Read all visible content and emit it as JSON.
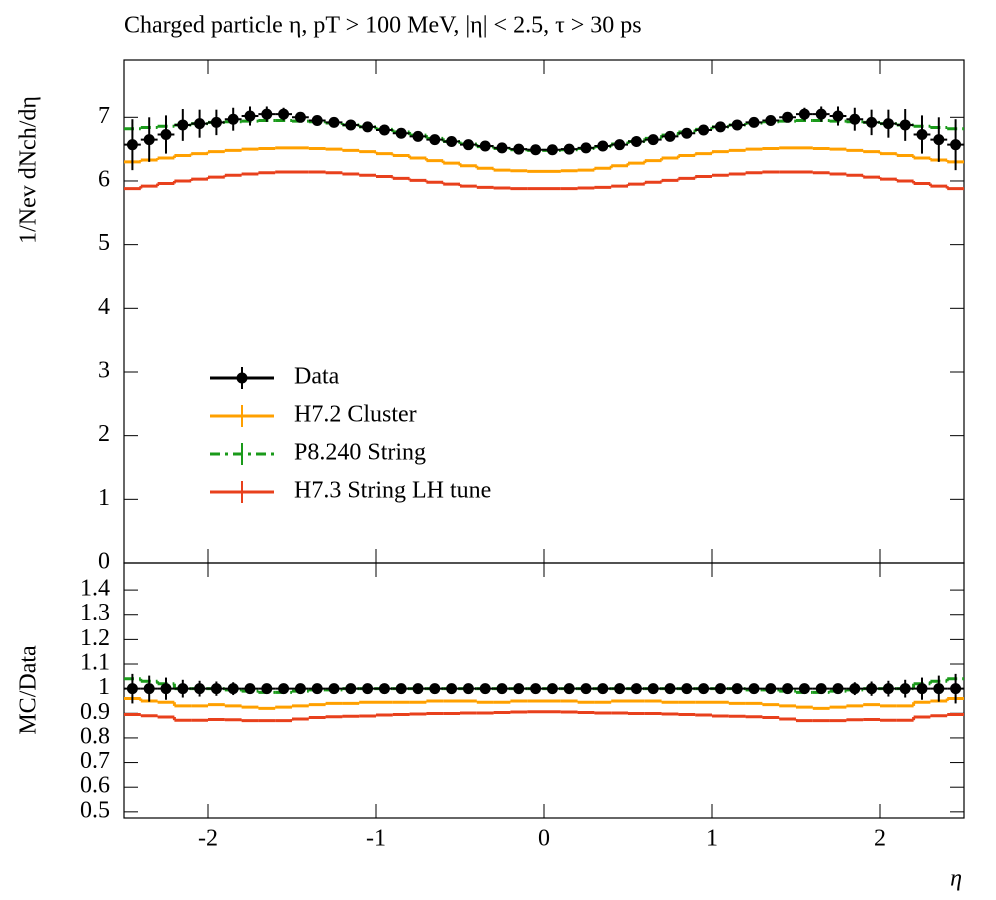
{
  "chart_data": [
    {
      "type": "histogram",
      "title": "Charged particle η, pT > 100 MeV, |η| < 2.5, τ > 30 ps",
      "ylabel": "1/Nev dNch/dη",
      "bins": [
        -2.5,
        -2.4,
        -2.3,
        -2.2,
        -2.1,
        -2.0,
        -1.9,
        -1.8,
        -1.7,
        -1.6,
        -1.5,
        -1.4,
        -1.3,
        -1.2,
        -1.1,
        -1.0,
        -0.9,
        -0.8,
        -0.7,
        -0.6,
        -0.5,
        -0.4,
        -0.3,
        -0.2,
        -0.1,
        0,
        0.1,
        0.2,
        0.3,
        0.4,
        0.5,
        0.6,
        0.7,
        0.8,
        0.9,
        1.0,
        1.1,
        1.2,
        1.3,
        1.4,
        1.5,
        1.6,
        1.7,
        1.8,
        1.9,
        2.0,
        2.1,
        2.2,
        2.3,
        2.4,
        2.5
      ],
      "xlim": [
        -2.5,
        2.5
      ],
      "xticks": [
        -2,
        -1,
        0,
        1,
        2
      ],
      "ylim": [
        0,
        7.9
      ],
      "yticks": [
        0,
        1,
        2,
        3,
        4,
        5,
        6,
        7
      ],
      "series": [
        {
          "name": "Data",
          "color": "#000000",
          "style": "points",
          "values": [
            6.57,
            6.65,
            6.73,
            6.88,
            6.9,
            6.92,
            6.97,
            7.02,
            7.05,
            7.05,
            7.0,
            6.95,
            6.92,
            6.88,
            6.85,
            6.8,
            6.75,
            6.7,
            6.65,
            6.62,
            6.57,
            6.55,
            6.52,
            6.5,
            6.49,
            6.49,
            6.5,
            6.52,
            6.55,
            6.57,
            6.62,
            6.65,
            6.7,
            6.75,
            6.8,
            6.85,
            6.88,
            6.92,
            6.95,
            7.0,
            7.05,
            7.05,
            7.02,
            6.97,
            6.92,
            6.9,
            6.88,
            6.73,
            6.65,
            6.57
          ],
          "errors": [
            0.4,
            0.35,
            0.3,
            0.25,
            0.22,
            0.2,
            0.18,
            0.15,
            0.12,
            0.1,
            0.08,
            0.07,
            0.06,
            0.06,
            0.05,
            0.05,
            0.05,
            0.05,
            0.05,
            0.05,
            0.05,
            0.05,
            0.05,
            0.05,
            0.05,
            0.05,
            0.05,
            0.05,
            0.05,
            0.05,
            0.05,
            0.05,
            0.05,
            0.05,
            0.05,
            0.05,
            0.06,
            0.06,
            0.07,
            0.08,
            0.1,
            0.12,
            0.15,
            0.18,
            0.2,
            0.22,
            0.25,
            0.3,
            0.35,
            0.4
          ]
        },
        {
          "name": "H7.2 Cluster",
          "color": "#ffa000",
          "style": "solid",
          "values": [
            6.3,
            6.33,
            6.36,
            6.4,
            6.43,
            6.46,
            6.48,
            6.5,
            6.51,
            6.52,
            6.52,
            6.51,
            6.5,
            6.48,
            6.46,
            6.43,
            6.4,
            6.36,
            6.32,
            6.28,
            6.24,
            6.2,
            6.17,
            6.16,
            6.15,
            6.15,
            6.16,
            6.17,
            6.2,
            6.24,
            6.28,
            6.32,
            6.36,
            6.4,
            6.43,
            6.46,
            6.48,
            6.5,
            6.51,
            6.52,
            6.52,
            6.51,
            6.5,
            6.48,
            6.46,
            6.43,
            6.4,
            6.36,
            6.33,
            6.3
          ]
        },
        {
          "name": "P8.240 String",
          "color": "#1a9a1a",
          "style": "dashdot",
          "values": [
            6.82,
            6.84,
            6.86,
            6.88,
            6.9,
            6.92,
            6.93,
            6.94,
            6.95,
            6.95,
            6.94,
            6.93,
            6.91,
            6.88,
            6.85,
            6.81,
            6.77,
            6.72,
            6.67,
            6.62,
            6.58,
            6.54,
            6.51,
            6.49,
            6.48,
            6.48,
            6.49,
            6.51,
            6.54,
            6.58,
            6.62,
            6.67,
            6.72,
            6.77,
            6.81,
            6.85,
            6.88,
            6.91,
            6.93,
            6.94,
            6.95,
            6.95,
            6.94,
            6.93,
            6.92,
            6.9,
            6.88,
            6.86,
            6.84,
            6.82
          ]
        },
        {
          "name": "H7.3 String LH tune",
          "color": "#e8401c",
          "style": "solid",
          "values": [
            5.88,
            5.92,
            5.96,
            6.0,
            6.03,
            6.06,
            6.09,
            6.11,
            6.13,
            6.14,
            6.14,
            6.14,
            6.13,
            6.11,
            6.09,
            6.07,
            6.04,
            6.01,
            5.98,
            5.95,
            5.92,
            5.9,
            5.89,
            5.88,
            5.88,
            5.88,
            5.88,
            5.89,
            5.9,
            5.92,
            5.95,
            5.98,
            6.01,
            6.04,
            6.07,
            6.09,
            6.11,
            6.13,
            6.14,
            6.14,
            6.14,
            6.13,
            6.11,
            6.09,
            6.06,
            6.03,
            6.0,
            5.96,
            5.92,
            5.88
          ]
        }
      ]
    },
    {
      "type": "histogram",
      "ylabel": "MC/Data",
      "xlabel": "η",
      "bins": [
        -2.5,
        -2.4,
        -2.3,
        -2.2,
        -2.1,
        -2.0,
        -1.9,
        -1.8,
        -1.7,
        -1.6,
        -1.5,
        -1.4,
        -1.3,
        -1.2,
        -1.1,
        -1.0,
        -0.9,
        -0.8,
        -0.7,
        -0.6,
        -0.5,
        -0.4,
        -0.3,
        -0.2,
        -0.1,
        0,
        0.1,
        0.2,
        0.3,
        0.4,
        0.5,
        0.6,
        0.7,
        0.8,
        0.9,
        1.0,
        1.1,
        1.2,
        1.3,
        1.4,
        1.5,
        1.6,
        1.7,
        1.8,
        1.9,
        2.0,
        2.1,
        2.2,
        2.3,
        2.4,
        2.5
      ],
      "xlim": [
        -2.5,
        2.5
      ],
      "xticks": [
        -2,
        -1,
        0,
        1,
        2
      ],
      "ylim": [
        0.475,
        1.51
      ],
      "yticks": [
        0.5,
        0.6,
        0.7,
        0.8,
        0.9,
        1,
        1.1,
        1.2,
        1.3,
        1.4
      ],
      "series": [
        {
          "color": "#000000",
          "style": "points",
          "values": [
            1,
            1,
            1,
            1,
            1,
            1,
            1,
            1,
            1,
            1,
            1,
            1,
            1,
            1,
            1,
            1,
            1,
            1,
            1,
            1,
            1,
            1,
            1,
            1,
            1,
            1,
            1,
            1,
            1,
            1,
            1,
            1,
            1,
            1,
            1,
            1,
            1,
            1,
            1,
            1,
            1,
            1,
            1,
            1,
            1,
            1,
            1,
            1,
            1,
            1
          ],
          "errors": [
            0.06,
            0.053,
            0.045,
            0.036,
            0.032,
            0.029,
            0.026,
            0.021,
            0.017,
            0.014,
            0.011,
            0.01,
            0.009,
            0.009,
            0.007,
            0.007,
            0.007,
            0.007,
            0.007,
            0.007,
            0.007,
            0.007,
            0.007,
            0.007,
            0.007,
            0.007,
            0.007,
            0.007,
            0.007,
            0.007,
            0.007,
            0.007,
            0.007,
            0.007,
            0.007,
            0.007,
            0.009,
            0.009,
            0.01,
            0.011,
            0.014,
            0.017,
            0.021,
            0.026,
            0.029,
            0.032,
            0.036,
            0.045,
            0.053,
            0.06
          ]
        },
        {
          "color": "#ffa000",
          "style": "solid",
          "values": [
            0.96,
            0.95,
            0.945,
            0.93,
            0.93,
            0.935,
            0.93,
            0.925,
            0.92,
            0.925,
            0.93,
            0.935,
            0.94,
            0.94,
            0.945,
            0.945,
            0.945,
            0.945,
            0.95,
            0.95,
            0.95,
            0.945,
            0.945,
            0.95,
            0.95,
            0.95,
            0.95,
            0.945,
            0.945,
            0.95,
            0.95,
            0.95,
            0.945,
            0.945,
            0.945,
            0.945,
            0.94,
            0.94,
            0.935,
            0.93,
            0.925,
            0.92,
            0.925,
            0.93,
            0.935,
            0.93,
            0.93,
            0.945,
            0.95,
            0.96
          ]
        },
        {
          "color": "#1a9a1a",
          "style": "dashdot",
          "values": [
            1.04,
            1.03,
            1.02,
            1.0,
            1.0,
            1.0,
            0.995,
            0.99,
            0.985,
            0.985,
            0.99,
            0.995,
            0.995,
            1.0,
            1.0,
            1.0,
            1.0,
            1.0,
            1.0,
            1.0,
            1.0,
            1.0,
            1.0,
            1.0,
            1.0,
            1.0,
            1.0,
            1.0,
            1.0,
            1.0,
            1.0,
            1.0,
            1.0,
            1.0,
            1.0,
            1.0,
            1.0,
            0.995,
            0.995,
            0.99,
            0.985,
            0.985,
            0.99,
            0.995,
            1.0,
            1.0,
            1.0,
            1.02,
            1.03,
            1.04
          ]
        },
        {
          "color": "#e8401c",
          "style": "solid",
          "values": [
            0.895,
            0.89,
            0.885,
            0.872,
            0.872,
            0.875,
            0.874,
            0.87,
            0.87,
            0.87,
            0.877,
            0.883,
            0.886,
            0.888,
            0.889,
            0.893,
            0.895,
            0.897,
            0.899,
            0.899,
            0.901,
            0.901,
            0.903,
            0.905,
            0.906,
            0.906,
            0.905,
            0.903,
            0.901,
            0.901,
            0.899,
            0.899,
            0.897,
            0.895,
            0.893,
            0.889,
            0.888,
            0.886,
            0.883,
            0.877,
            0.87,
            0.87,
            0.87,
            0.874,
            0.875,
            0.872,
            0.872,
            0.885,
            0.89,
            0.895
          ]
        }
      ]
    }
  ]
}
